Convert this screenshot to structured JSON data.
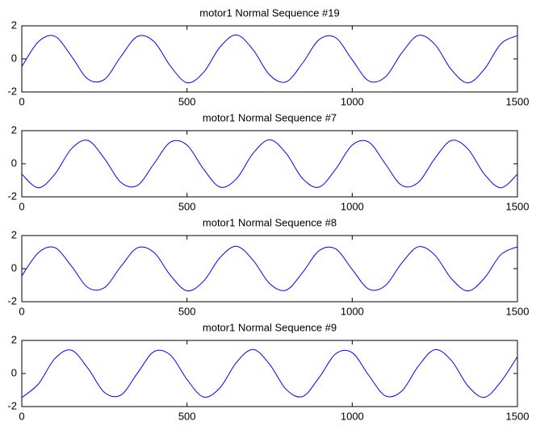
{
  "chart_data": [
    {
      "type": "line",
      "title": "motor1 Normal Sequence #19",
      "x": [
        0,
        50,
        100,
        150,
        200,
        250,
        300,
        350,
        400,
        450,
        500,
        550,
        600,
        650,
        700,
        750,
        800,
        850,
        900,
        950,
        1000,
        1050,
        1100,
        1150,
        1200,
        1250,
        1300,
        1350,
        1400,
        1450,
        1500
      ],
      "series": [
        {
          "color": "#0000ff",
          "values": [
            -0.47,
            1.03,
            1.37,
            0.17,
            -1.22,
            -1.24,
            0.14,
            1.36,
            1.05,
            -0.44,
            -1.44,
            -0.82,
            0.72,
            1.45,
            0.55,
            -0.97,
            -1.39,
            -0.25,
            1.17,
            1.28,
            -0.06,
            -1.33,
            -1.1,
            0.36,
            1.42,
            0.88,
            -0.65,
            -1.45,
            -0.62,
            0.91,
            1.41
          ]
        }
      ],
      "xlim": [
        0,
        1500
      ],
      "xticks": [
        0,
        500,
        1000,
        1500
      ],
      "ylim": [
        -2,
        2
      ],
      "yticks": [
        -2,
        0,
        2
      ]
    },
    {
      "type": "line",
      "title": "motor1 Normal Sequence #7",
      "x": [
        0,
        50,
        100,
        150,
        200,
        250,
        300,
        350,
        400,
        450,
        500,
        550,
        600,
        650,
        700,
        750,
        800,
        850,
        900,
        950,
        1000,
        1050,
        1100,
        1150,
        1200,
        1250,
        1300,
        1350,
        1400,
        1450,
        1500
      ],
      "series": [
        {
          "color": "#0000ff",
          "values": [
            -0.63,
            -1.45,
            -0.63,
            0.9,
            1.41,
            0.32,
            -1.13,
            -1.31,
            0,
            1.31,
            1.13,
            -0.32,
            -1.41,
            -0.9,
            0.63,
            1.45,
            0.63,
            -0.9,
            -1.41,
            -0.32,
            1.13,
            1.31,
            0,
            -1.31,
            -1.13,
            0.32,
            1.41,
            0.9,
            -0.63,
            -1.45,
            -0.63
          ]
        }
      ],
      "xlim": [
        0,
        1500
      ],
      "xticks": [
        0,
        500,
        1000,
        1500
      ],
      "ylim": [
        -2,
        2
      ],
      "yticks": [
        -2,
        0,
        2
      ]
    },
    {
      "type": "line",
      "title": "motor1 Normal Sequence #8",
      "x": [
        0,
        50,
        100,
        150,
        200,
        250,
        300,
        350,
        400,
        450,
        500,
        550,
        600,
        650,
        700,
        750,
        800,
        850,
        900,
        950,
        1000,
        1050,
        1100,
        1150,
        1200,
        1250,
        1300,
        1350,
        1400,
        1450,
        1500
      ],
      "series": [
        {
          "color": "#0000ff",
          "values": [
            -0.44,
            0.96,
            1.27,
            0.16,
            -1.14,
            -1.15,
            0.13,
            1.26,
            0.98,
            -0.41,
            -1.34,
            -0.76,
            0.67,
            1.35,
            0.51,
            -0.9,
            -1.3,
            -0.23,
            1.09,
            1.19,
            -0.05,
            -1.24,
            -1.03,
            0.34,
            1.32,
            0.82,
            -0.6,
            -1.35,
            -0.58,
            0.85,
            1.32
          ]
        }
      ],
      "xlim": [
        0,
        1500
      ],
      "xticks": [
        0,
        500,
        1000,
        1500
      ],
      "ylim": [
        -2,
        2
      ],
      "yticks": [
        -2,
        0,
        2
      ]
    },
    {
      "type": "line",
      "title": "motor1 Normal Sequence #9",
      "x": [
        0,
        50,
        100,
        150,
        200,
        250,
        300,
        350,
        400,
        450,
        500,
        550,
        600,
        650,
        700,
        750,
        800,
        850,
        900,
        950,
        1000,
        1050,
        1100,
        1150,
        1200,
        1250,
        1300,
        1350,
        1400,
        1450,
        1500
      ],
      "series": [
        {
          "color": "#0000ff",
          "values": [
            -1.45,
            -0.64,
            0.9,
            1.41,
            0.32,
            -1.14,
            -1.3,
            0.02,
            1.32,
            1.11,
            -0.36,
            -1.42,
            -0.86,
            0.68,
            1.45,
            0.56,
            -0.96,
            -1.39,
            -0.24,
            1.19,
            1.26,
            -0.11,
            -1.35,
            -1.06,
            0.44,
            1.44,
            0.79,
            -0.75,
            -1.44,
            -0.49,
            1.02
          ]
        }
      ],
      "xlim": [
        0,
        1500
      ],
      "xticks": [
        0,
        500,
        1000,
        1500
      ],
      "ylim": [
        -2,
        2
      ],
      "yticks": [
        -2,
        0,
        2
      ]
    }
  ]
}
